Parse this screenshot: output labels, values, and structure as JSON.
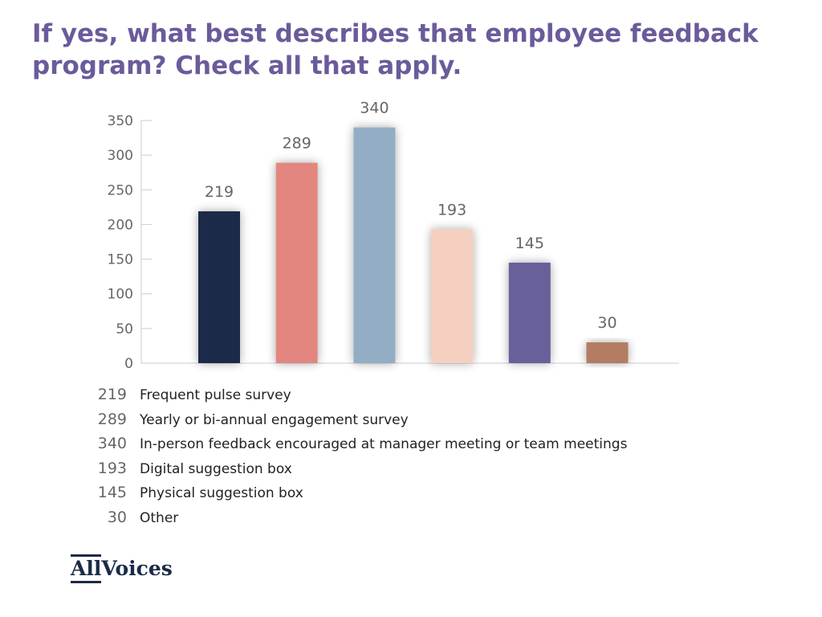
{
  "chart_data": {
    "type": "bar",
    "title": "If yes, what best describes that employee feedback program? Check all that apply.",
    "categories": [
      "Frequent pulse survey",
      "Yearly or bi-annual engagement survey",
      "In-person feedback encouraged at manager meeting or team meetings",
      "Digital suggestion box",
      "Physical suggestion box",
      "Other"
    ],
    "values": [
      219,
      289,
      340,
      193,
      145,
      30
    ],
    "colors": [
      "#1c2a48",
      "#e38680",
      "#93adc4",
      "#f5cfbf",
      "#686099",
      "#b37b63"
    ],
    "ylim": [
      0,
      350
    ],
    "yticks": [
      0,
      50,
      100,
      150,
      200,
      250,
      300,
      350
    ],
    "xlabel": "",
    "ylabel": "",
    "grid": false,
    "legend": "bottom"
  },
  "logo": {
    "text_a": "All",
    "text_b": "Voices"
  }
}
